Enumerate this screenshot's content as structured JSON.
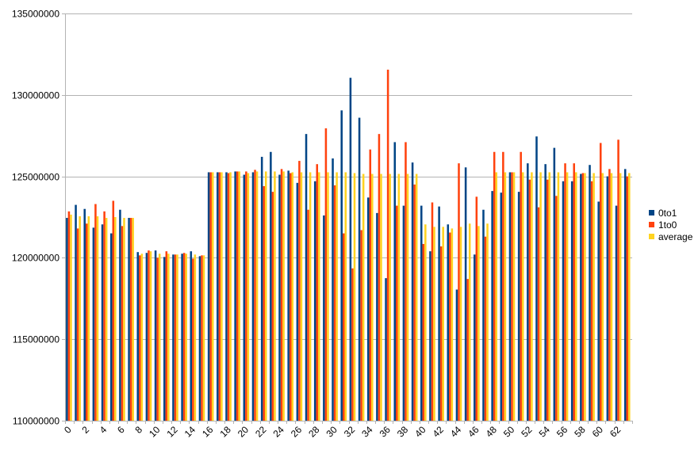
{
  "chart_data": {
    "type": "bar",
    "title": "",
    "xlabel": "",
    "ylabel": "",
    "ylim": [
      110000000,
      135000000
    ],
    "yticks": [
      110000000,
      115000000,
      120000000,
      125000000,
      130000000,
      135000000
    ],
    "ytick_labels": [
      "110000000",
      "115000000",
      "120000000",
      "125000000",
      "130000000",
      "135000000"
    ],
    "xtick_labels_shown": [
      "0",
      "2",
      "4",
      "6",
      "8",
      "10",
      "12",
      "14",
      "16",
      "18",
      "20",
      "22",
      "24",
      "26",
      "28",
      "30",
      "32",
      "34",
      "36",
      "38",
      "40",
      "42",
      "44",
      "46",
      "48",
      "50",
      "52",
      "54",
      "56",
      "58",
      "60",
      "62"
    ],
    "grid": "horizontal major gridlines",
    "legend_position": "right",
    "categories": [
      0,
      1,
      2,
      3,
      4,
      5,
      6,
      7,
      8,
      9,
      10,
      11,
      12,
      13,
      14,
      15,
      16,
      17,
      18,
      19,
      20,
      21,
      22,
      23,
      24,
      25,
      26,
      27,
      28,
      29,
      30,
      31,
      32,
      33,
      34,
      35,
      36,
      37,
      38,
      39,
      40,
      41,
      42,
      43,
      44,
      45,
      46,
      47,
      48,
      49,
      50,
      51,
      52,
      53,
      54,
      55,
      56,
      57,
      58,
      59,
      60,
      61,
      62,
      63
    ],
    "series": [
      {
        "name": "0to1",
        "color": "#004586",
        "values": [
          122450000,
          123250000,
          123000000,
          121850000,
          122050000,
          121500000,
          122950000,
          122450000,
          120350000,
          120300000,
          120450000,
          120050000,
          120200000,
          120250000,
          120400000,
          120100000,
          125250000,
          125250000,
          125250000,
          125300000,
          125100000,
          125250000,
          126200000,
          126500000,
          125100000,
          125350000,
          124600000,
          127600000,
          124700000,
          122600000,
          126100000,
          129050000,
          131050000,
          128600000,
          123700000,
          122750000,
          118750000,
          127100000,
          123200000,
          125850000,
          123200000,
          120400000,
          123150000,
          122050000,
          118050000,
          125550000,
          120200000,
          122950000,
          124100000,
          124000000,
          125250000,
          124050000,
          125800000,
          127450000,
          125750000,
          126750000,
          124700000,
          124700000,
          125150000,
          125700000,
          123450000,
          125000000,
          123200000,
          125450000
        ]
      },
      {
        "name": "1to0",
        "color": "#ff420e",
        "values": [
          122850000,
          121800000,
          122100000,
          123300000,
          122850000,
          123500000,
          121950000,
          122450000,
          120150000,
          120450000,
          120000000,
          120400000,
          120200000,
          120300000,
          119950000,
          120150000,
          125250000,
          125250000,
          125200000,
          125300000,
          125300000,
          125400000,
          124400000,
          124050000,
          125450000,
          125200000,
          125950000,
          122950000,
          125750000,
          127950000,
          124450000,
          121500000,
          119350000,
          121700000,
          126650000,
          127600000,
          131550000,
          123200000,
          127100000,
          124500000,
          120850000,
          123400000,
          120700000,
          121550000,
          125800000,
          118700000,
          123750000,
          121300000,
          126500000,
          126500000,
          125250000,
          126500000,
          124800000,
          123100000,
          124800000,
          123800000,
          125800000,
          125800000,
          125200000,
          124700000,
          127050000,
          125450000,
          127250000,
          125000000
        ]
      },
      {
        "name": "average",
        "color": "#ffd320",
        "values": [
          122650000,
          122550000,
          122550000,
          122550000,
          122450000,
          122500000,
          122450000,
          122450000,
          120250000,
          120400000,
          120250000,
          120250000,
          120200000,
          120250000,
          120200000,
          120150000,
          125250000,
          125250000,
          125250000,
          125300000,
          125200000,
          125300000,
          125300000,
          125300000,
          125300000,
          125250000,
          125250000,
          125250000,
          125250000,
          125250000,
          125250000,
          125250000,
          125200000,
          125150000,
          125150000,
          125150000,
          125150000,
          125150000,
          125150000,
          125150000,
          122050000,
          121900000,
          121900000,
          121800000,
          121900000,
          122100000,
          121950000,
          122100000,
          125250000,
          125250000,
          125250000,
          125250000,
          125250000,
          125250000,
          125250000,
          125250000,
          125250000,
          125250000,
          125200000,
          125200000,
          125200000,
          125200000,
          125200000,
          125200000
        ]
      }
    ]
  },
  "legend": {
    "items": [
      {
        "label": "0to1",
        "color": "#004586"
      },
      {
        "label": "1to0",
        "color": "#ff420e"
      },
      {
        "label": "average",
        "color": "#ffd320"
      }
    ]
  }
}
